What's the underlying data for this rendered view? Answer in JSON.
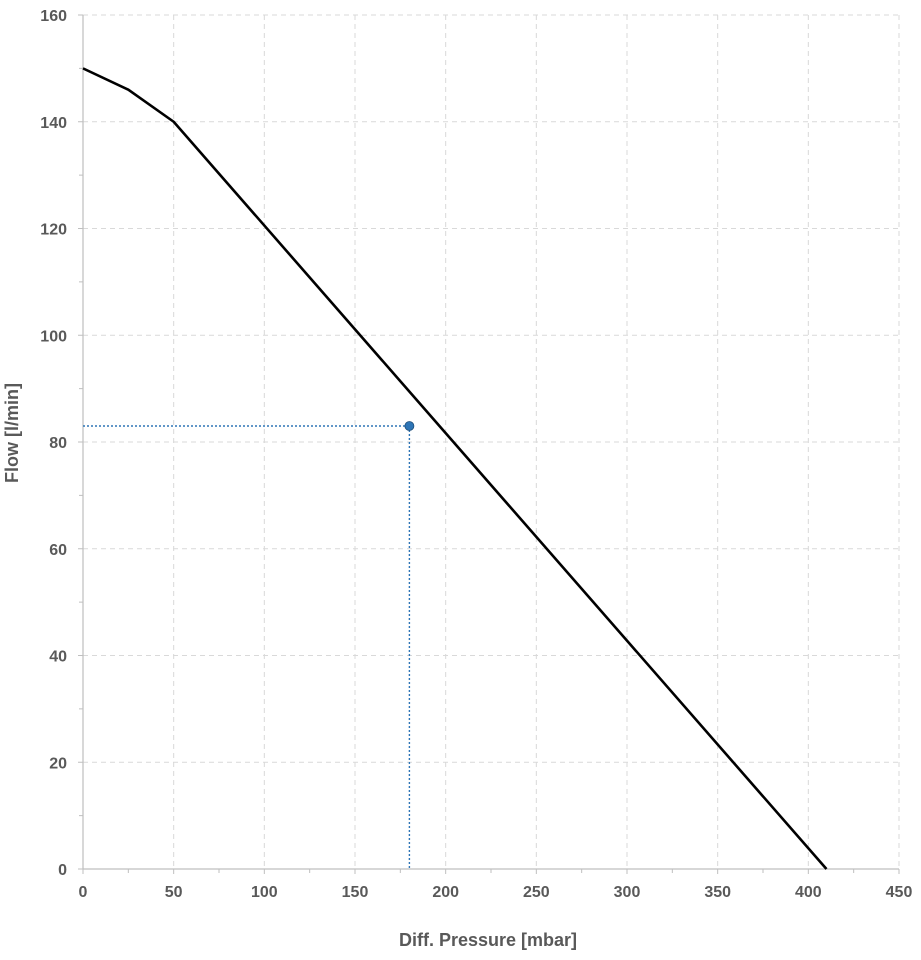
{
  "chart_data": {
    "type": "line",
    "xlabel": "Diff. Pressure [mbar]",
    "ylabel": "Flow [l/min]",
    "xlim": [
      0,
      450
    ],
    "ylim": [
      0,
      160
    ],
    "x_ticks": [
      0,
      50,
      100,
      150,
      200,
      250,
      300,
      350,
      400,
      450
    ],
    "y_ticks": [
      0,
      20,
      40,
      60,
      80,
      100,
      120,
      140,
      160
    ],
    "grid": "dashed",
    "series": [
      {
        "color": "#000000",
        "x": [
          0,
          25,
          50,
          410
        ],
        "y": [
          150,
          146,
          140,
          0
        ]
      }
    ],
    "operating_point": {
      "x": 180,
      "y": 83,
      "color": "#2e75b6",
      "guide_color": "#2e75b6"
    }
  }
}
